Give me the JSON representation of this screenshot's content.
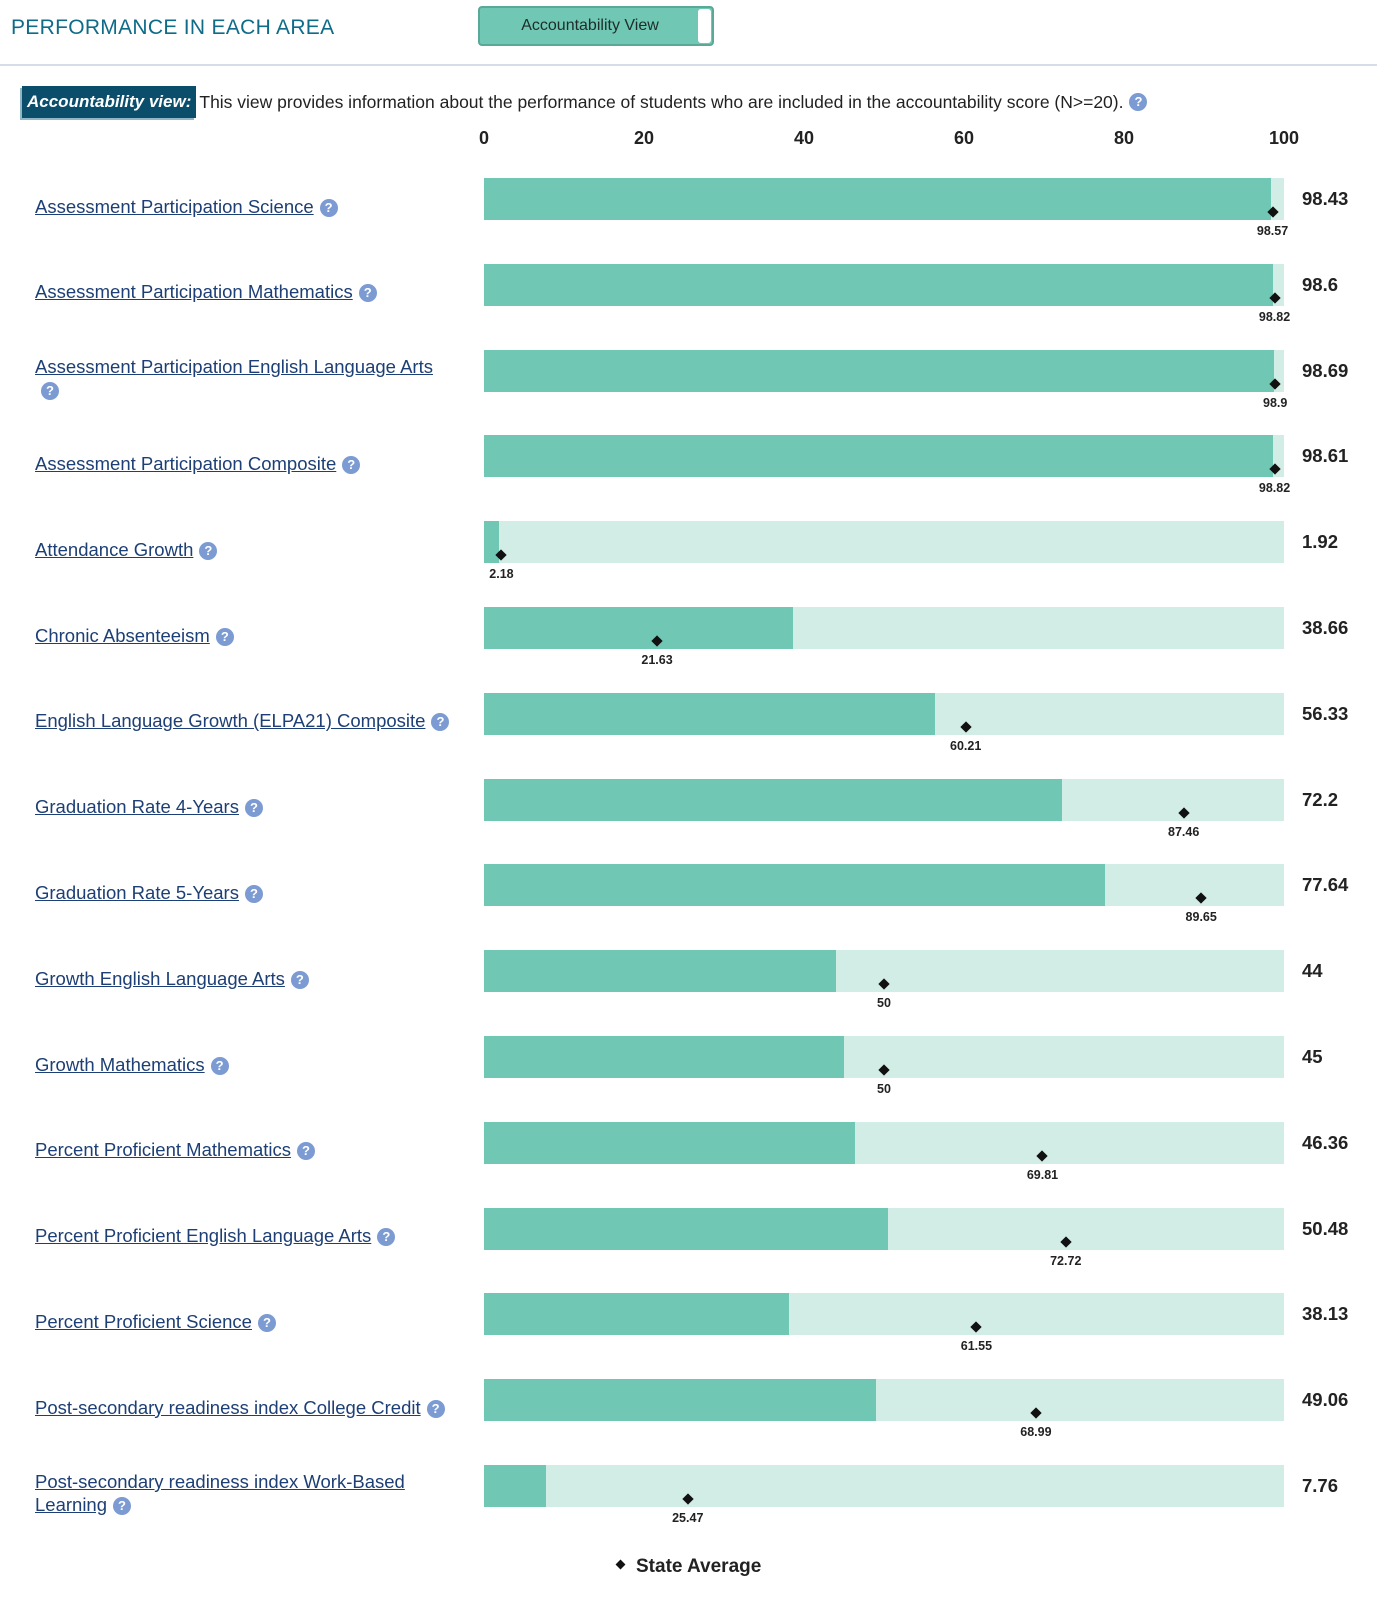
{
  "header": {
    "title": "PERFORMANCE IN EACH AREA",
    "toggle_label": "Accountability View"
  },
  "note": {
    "tag": "Accountability view:",
    "text": "This view provides information about the performance of students who are included in the accountability score (N>=20)."
  },
  "legend": {
    "label": "State Average"
  },
  "colors": {
    "bar": "#6fc7b4",
    "track": "#d2ede6",
    "accent": "#0a4e6c",
    "link": "#1d3f75"
  },
  "chart_data": {
    "type": "bar",
    "orientation": "horizontal",
    "xlim": [
      0,
      100
    ],
    "ticks": [
      "0",
      "20",
      "40",
      "60",
      "80",
      "100"
    ],
    "categories": [
      "Assessment Participation Science",
      "Assessment Participation Mathematics",
      "Assessment Participation English Language Arts",
      "Assessment Participation Composite",
      "Attendance Growth",
      "Chronic Absenteeism",
      "English Language Growth (ELPA21) Composite",
      "Graduation Rate 4-Years",
      "Graduation Rate 5-Years",
      "Growth English Language Arts",
      "Growth Mathematics",
      "Percent Proficient Mathematics",
      "Percent Proficient English Language Arts",
      "Percent Proficient Science",
      "Post-secondary readiness index College Credit",
      "Post-secondary readiness index Work-Based Learning"
    ],
    "series": [
      {
        "name": "School",
        "values": [
          98.43,
          98.6,
          98.69,
          98.61,
          1.92,
          38.66,
          56.33,
          72.2,
          77.64,
          44,
          45,
          46.36,
          50.48,
          38.13,
          49.06,
          7.76
        ]
      },
      {
        "name": "State Average",
        "values": [
          98.57,
          98.82,
          98.9,
          98.82,
          2.18,
          21.63,
          60.21,
          87.46,
          89.65,
          50,
          50,
          69.81,
          72.72,
          61.55,
          68.99,
          25.47
        ]
      }
    ],
    "labels": {
      "values": [
        "98.43",
        "98.6",
        "98.69",
        "98.61",
        "1.92",
        "38.66",
        "56.33",
        "72.2",
        "77.64",
        "44",
        "45",
        "46.36",
        "50.48",
        "38.13",
        "49.06",
        "7.76"
      ],
      "state": [
        "98.57",
        "98.82",
        "98.9",
        "98.82",
        "2.18",
        "21.63",
        "60.21",
        "87.46",
        "89.65",
        "50",
        "50",
        "69.81",
        "72.72",
        "61.55",
        "68.99",
        "25.47"
      ]
    }
  }
}
